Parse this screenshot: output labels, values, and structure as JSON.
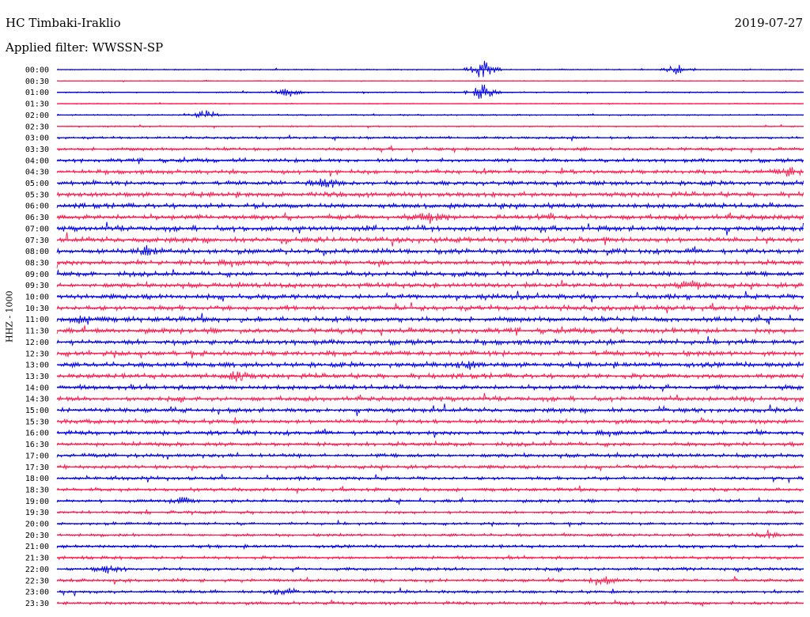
{
  "header": {
    "station": "HC Timbaki-Iraklio",
    "date": "2019-07-27",
    "filter": "Applied filter: WWSSN-SP"
  },
  "chart_data": {
    "type": "line",
    "title": "HC Timbaki-Iraklio",
    "subtitle": "Applied filter: WWSSN-SP",
    "ylabel": "HHZ - 1000",
    "xlabel": "",
    "row_labels": [
      "00:00",
      "00:30",
      "01:00",
      "01:30",
      "02:00",
      "02:30",
      "03:00",
      "03:30",
      "04:00",
      "04:30",
      "05:00",
      "05:30",
      "06:00",
      "06:30",
      "07:00",
      "07:30",
      "08:00",
      "08:30",
      "09:00",
      "09:30",
      "10:00",
      "10:30",
      "11:00",
      "11:30",
      "12:00",
      "12:30",
      "13:00",
      "13:30",
      "14:00",
      "14:30",
      "15:00",
      "15:30",
      "16:00",
      "16:30",
      "17:00",
      "17:30",
      "18:00",
      "18:30",
      "19:00",
      "19:30",
      "20:00",
      "20:30",
      "21:00",
      "21:30",
      "22:00",
      "22:30",
      "23:00",
      "23:30"
    ],
    "row_amplitude": [
      0.15,
      0.12,
      0.18,
      0.15,
      0.2,
      0.2,
      0.35,
      0.45,
      0.55,
      0.6,
      0.65,
      0.7,
      0.72,
      0.75,
      0.75,
      0.75,
      0.72,
      0.7,
      0.7,
      0.7,
      0.72,
      0.72,
      0.75,
      0.75,
      0.75,
      0.75,
      0.72,
      0.7,
      0.68,
      0.66,
      0.64,
      0.62,
      0.6,
      0.58,
      0.56,
      0.52,
      0.5,
      0.48,
      0.45,
      0.42,
      0.4,
      0.42,
      0.45,
      0.45,
      0.48,
      0.45,
      0.42,
      0.45
    ],
    "events": [
      {
        "row": 0,
        "t": 0.57,
        "amp": 3.5
      },
      {
        "row": 2,
        "t": 0.57,
        "amp": 3.0
      },
      {
        "row": 4,
        "t": 0.2,
        "amp": 1.8
      },
      {
        "row": 0,
        "t": 0.83,
        "amp": 1.8
      },
      {
        "row": 2,
        "t": 0.31,
        "amp": 1.6
      },
      {
        "row": 9,
        "t": 0.98,
        "amp": 1.6
      },
      {
        "row": 10,
        "t": 0.36,
        "amp": 1.5
      },
      {
        "row": 13,
        "t": 0.5,
        "amp": 1.4
      },
      {
        "row": 16,
        "t": 0.12,
        "amp": 1.4
      },
      {
        "row": 27,
        "t": 0.24,
        "amp": 1.5
      },
      {
        "row": 26,
        "t": 0.55,
        "amp": 1.3
      },
      {
        "row": 44,
        "t": 0.07,
        "amp": 1.6
      },
      {
        "row": 45,
        "t": 0.73,
        "amp": 1.4
      },
      {
        "row": 46,
        "t": 0.3,
        "amp": 1.5
      },
      {
        "row": 41,
        "t": 0.95,
        "amp": 1.4
      },
      {
        "row": 38,
        "t": 0.17,
        "amp": 1.3
      },
      {
        "row": 19,
        "t": 0.85,
        "amp": 1.3
      },
      {
        "row": 22,
        "t": 0.04,
        "amp": 1.4
      }
    ],
    "colors": {
      "even_rows": "#0000e6",
      "odd_rows": "#ff1a4d",
      "text": "#000000"
    }
  }
}
